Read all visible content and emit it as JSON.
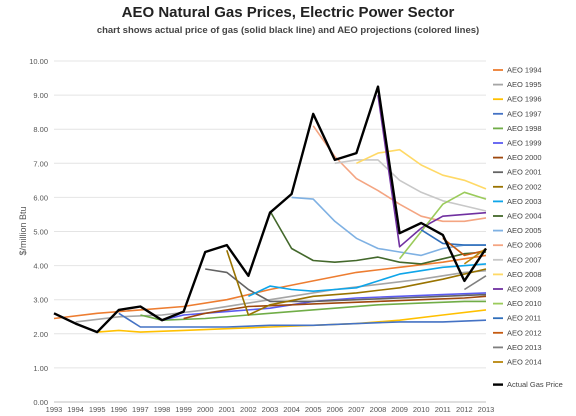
{
  "chart_data": {
    "type": "line",
    "title": "AEO Natural Gas Prices, Electric Power Sector",
    "subtitle": "chart shows actual price of gas (solid black line) and AEO projections (colored lines)",
    "ylabel": "$/million Btu",
    "xlabel": "",
    "ylim": [
      0,
      10
    ],
    "yticks": [
      "0.00",
      "1.00",
      "2.00",
      "3.00",
      "4.00",
      "5.00",
      "6.00",
      "7.00",
      "8.00",
      "9.00",
      "10.00"
    ],
    "x": [
      1993,
      1994,
      1995,
      1996,
      1997,
      1998,
      1999,
      2000,
      2001,
      2002,
      2003,
      2004,
      2005,
      2006,
      2007,
      2008,
      2009,
      2010,
      2011,
      2012,
      2013
    ],
    "grid": true,
    "legend_position": "right",
    "series": [
      {
        "name": "AEO 1994",
        "color": "#ED7D31",
        "x": [
          1993,
          1995,
          1997,
          1999,
          2001,
          2003,
          2005,
          2007,
          2009,
          2011,
          2013
        ],
        "y": [
          2.45,
          2.6,
          2.7,
          2.8,
          3.0,
          3.3,
          3.55,
          3.8,
          3.95,
          4.1,
          4.3
        ]
      },
      {
        "name": "AEO 1995",
        "color": "#A5A5A5",
        "x": [
          1994,
          1996,
          1998,
          2000,
          2002,
          2004,
          2006,
          2008,
          2010,
          2012,
          2013
        ],
        "y": [
          2.35,
          2.5,
          2.55,
          2.7,
          2.9,
          3.1,
          3.3,
          3.45,
          3.6,
          3.8,
          3.85
        ]
      },
      {
        "name": "AEO 1996",
        "color": "#FFC000",
        "x": [
          1995,
          1996,
          1997,
          1999,
          2001,
          2003,
          2005,
          2007,
          2009,
          2011,
          2013
        ],
        "y": [
          2.05,
          2.1,
          2.05,
          2.1,
          2.15,
          2.2,
          2.25,
          2.3,
          2.4,
          2.55,
          2.7
        ]
      },
      {
        "name": "AEO 1997",
        "color": "#4472C4",
        "x": [
          1996,
          1997,
          1999,
          2001,
          2003,
          2005,
          2007,
          2009,
          2011,
          2013
        ],
        "y": [
          2.6,
          2.2,
          2.2,
          2.2,
          2.25,
          2.25,
          2.3,
          2.35,
          2.35,
          2.4
        ]
      },
      {
        "name": "AEO 1998",
        "color": "#70AD47",
        "x": [
          1997,
          1998,
          2000,
          2002,
          2004,
          2006,
          2008,
          2010,
          2012,
          2013
        ],
        "y": [
          2.55,
          2.4,
          2.45,
          2.55,
          2.65,
          2.75,
          2.85,
          2.9,
          2.95,
          2.95
        ]
      },
      {
        "name": "AEO 1999",
        "color": "#5B5BF0",
        "x": [
          1998,
          1999,
          2001,
          2003,
          2005,
          2007,
          2009,
          2011,
          2013
        ],
        "y": [
          2.4,
          2.55,
          2.65,
          2.75,
          2.95,
          3.05,
          3.1,
          3.15,
          3.2
        ]
      },
      {
        "name": "AEO 2000",
        "color": "#9E480E",
        "x": [
          1999,
          2000,
          2002,
          2004,
          2006,
          2008,
          2010,
          2012,
          2013
        ],
        "y": [
          2.45,
          2.6,
          2.8,
          2.85,
          2.9,
          2.95,
          3.0,
          3.05,
          3.1
        ]
      },
      {
        "name": "AEO 2001",
        "color": "#636363",
        "x": [
          2000,
          2001,
          2002,
          2003,
          2005,
          2007,
          2009,
          2011,
          2013
        ],
        "y": [
          3.9,
          3.8,
          3.3,
          2.95,
          2.95,
          3.0,
          3.05,
          3.1,
          3.15
        ]
      },
      {
        "name": "AEO 2002",
        "color": "#997300",
        "x": [
          2001,
          2002,
          2003,
          2005,
          2007,
          2009,
          2011,
          2013
        ],
        "y": [
          4.45,
          2.55,
          2.85,
          3.1,
          3.2,
          3.35,
          3.6,
          3.9
        ]
      },
      {
        "name": "AEO 2003",
        "color": "#0EA5E9",
        "x": [
          2002,
          2003,
          2004,
          2005,
          2006,
          2007,
          2009,
          2011,
          2013
        ],
        "y": [
          3.1,
          3.4,
          3.3,
          3.25,
          3.3,
          3.35,
          3.75,
          3.95,
          4.05
        ]
      },
      {
        "name": "AEO 2004",
        "color": "#43682B",
        "x": [
          2003,
          2004,
          2005,
          2006,
          2007,
          2008,
          2009,
          2010,
          2011,
          2012,
          2013
        ],
        "y": [
          5.6,
          4.5,
          4.15,
          4.1,
          4.15,
          4.25,
          4.1,
          4.05,
          4.2,
          4.35,
          4.4
        ]
      },
      {
        "name": "AEO 2005",
        "color": "#7FB1E3",
        "x": [
          2004,
          2005,
          2006,
          2007,
          2008,
          2009,
          2010,
          2011,
          2012,
          2013
        ],
        "y": [
          6.0,
          5.95,
          5.3,
          4.8,
          4.5,
          4.4,
          4.3,
          4.5,
          4.6,
          4.6
        ]
      },
      {
        "name": "AEO 2006",
        "color": "#F4A582",
        "x": [
          2005,
          2006,
          2007,
          2008,
          2009,
          2010,
          2011,
          2012,
          2013
        ],
        "y": [
          8.1,
          7.2,
          6.55,
          6.2,
          5.8,
          5.45,
          5.3,
          5.3,
          5.4
        ]
      },
      {
        "name": "AEO 2007",
        "color": "#C8C8C8",
        "x": [
          2006,
          2007,
          2008,
          2009,
          2010,
          2011,
          2012,
          2013
        ],
        "y": [
          7.0,
          7.1,
          7.1,
          6.5,
          6.15,
          5.9,
          5.75,
          5.6
        ]
      },
      {
        "name": "AEO 2008",
        "color": "#FFD966",
        "x": [
          2007,
          2008,
          2009,
          2010,
          2011,
          2012,
          2013
        ],
        "y": [
          7.0,
          7.3,
          7.4,
          6.95,
          6.65,
          6.5,
          6.25
        ]
      },
      {
        "name": "AEO 2009",
        "color": "#7030A0",
        "x": [
          2008,
          2009,
          2010,
          2011,
          2012,
          2013
        ],
        "y": [
          9.0,
          4.55,
          5.1,
          5.45,
          5.5,
          5.55
        ]
      },
      {
        "name": "AEO 2010",
        "color": "#9BCB5B",
        "x": [
          2009,
          2010,
          2011,
          2012,
          2013
        ],
        "y": [
          4.2,
          5.0,
          5.8,
          6.15,
          5.95
        ]
      },
      {
        "name": "AEO 2011",
        "color": "#2F6EBA",
        "x": [
          2010,
          2011,
          2012,
          2013
        ],
        "y": [
          5.05,
          4.65,
          4.6,
          4.6
        ]
      },
      {
        "name": "AEO 2012",
        "color": "#C55A11",
        "x": [
          2011,
          2012,
          2013
        ],
        "y": [
          4.8,
          4.3,
          4.45
        ]
      },
      {
        "name": "AEO 2013",
        "color": "#7F7F7F",
        "x": [
          2012,
          2013
        ],
        "y": [
          3.3,
          3.7
        ]
      },
      {
        "name": "AEO 2014",
        "color": "#B8860B",
        "x": [
          2012,
          2013
        ],
        "y": [
          4.05,
          4.5
        ]
      },
      {
        "name": "Actual Gas Price",
        "color": "#000000",
        "x": [
          1993,
          1994,
          1995,
          1996,
          1997,
          1998,
          1999,
          2000,
          2001,
          2002,
          2003,
          2004,
          2005,
          2006,
          2007,
          2008,
          2009,
          2010,
          2011,
          2012,
          2013
        ],
        "y": [
          2.6,
          2.3,
          2.05,
          2.7,
          2.8,
          2.4,
          2.65,
          4.4,
          4.6,
          3.7,
          5.55,
          6.1,
          8.45,
          7.1,
          7.3,
          9.25,
          4.95,
          5.25,
          4.9,
          3.55,
          4.5
        ]
      }
    ]
  }
}
